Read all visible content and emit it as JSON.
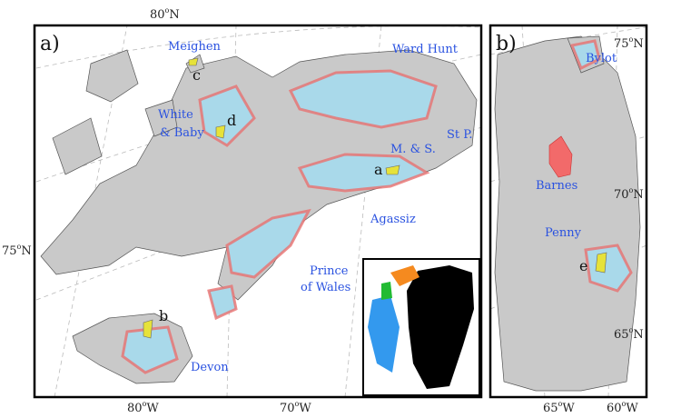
{
  "panel_a": {
    "label": "a)",
    "lat_labels": [
      {
        "value": "80",
        "sup": "o",
        "dir": "N"
      },
      {
        "value": "75",
        "sup": "o",
        "dir": "N"
      }
    ],
    "lon_labels": [
      {
        "value": "80",
        "sup": "o",
        "dir": "W"
      },
      {
        "value": "70",
        "sup": "o",
        "dir": "W"
      }
    ],
    "places": [
      "Meighen",
      "Ward Hunt",
      "White",
      "& Baby",
      "St P.",
      "M. & S.",
      "Agassiz",
      "Prince",
      "of Wales",
      "Devon"
    ],
    "sites": [
      "a",
      "b",
      "c",
      "d"
    ]
  },
  "panel_b": {
    "label": "b)",
    "lat_labels": [
      {
        "value": "75",
        "sup": "o",
        "dir": "N"
      },
      {
        "value": "70",
        "sup": "o",
        "dir": "N"
      },
      {
        "value": "65",
        "sup": "o",
        "dir": "N"
      }
    ],
    "lon_labels": [
      {
        "value": "65",
        "sup": "o",
        "dir": "W"
      },
      {
        "value": "60",
        "sup": "o",
        "dir": "W"
      }
    ],
    "places": [
      "Bylot",
      "Barnes",
      "Penny"
    ],
    "sites": [
      "e"
    ]
  }
}
